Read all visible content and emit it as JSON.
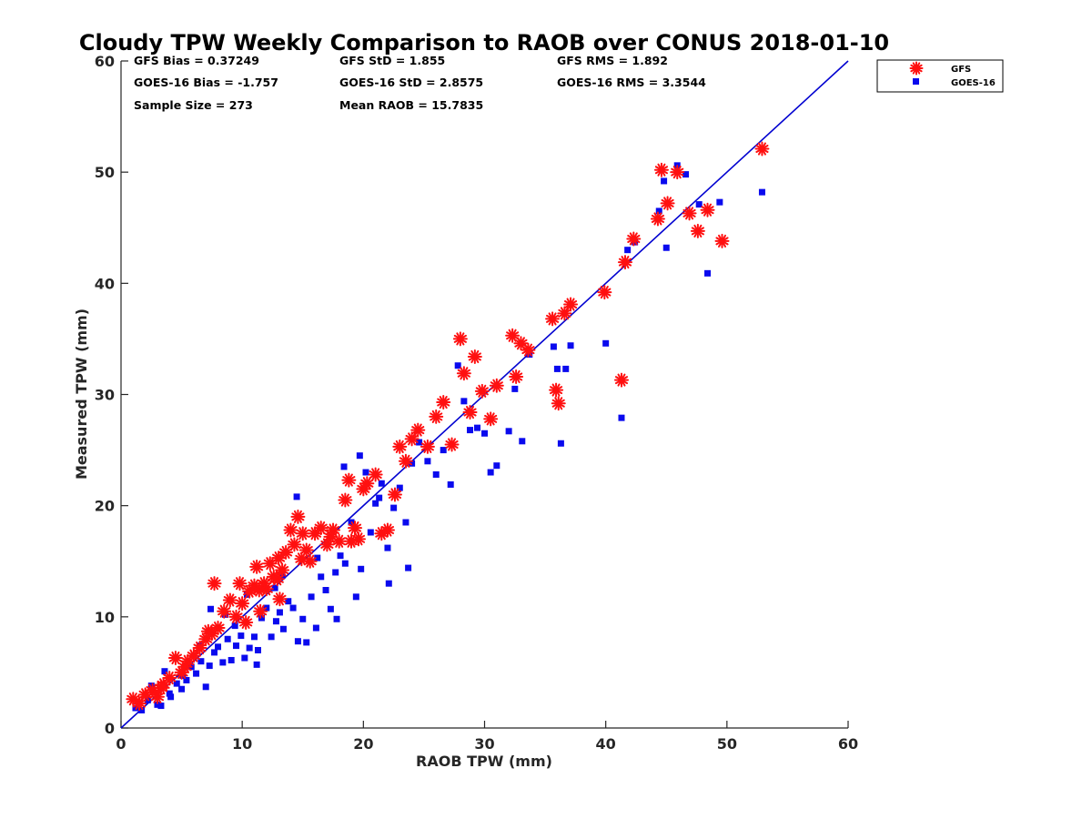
{
  "chart_data": {
    "type": "scatter",
    "title": "Cloudy TPW Weekly Comparison to RAOB over CONUS 2018-01-10",
    "xlabel": "RAOB TPW (mm)",
    "ylabel": "Measured TPW (mm)",
    "xlim": [
      0,
      60
    ],
    "ylim": [
      0,
      60
    ],
    "xticks": [
      "0",
      "10",
      "20",
      "30",
      "40",
      "50",
      "60"
    ],
    "yticks": [
      "0",
      "10",
      "20",
      "30",
      "40",
      "50",
      "60"
    ],
    "reference_line": {
      "from": [
        0,
        0
      ],
      "to": [
        60,
        60
      ],
      "color": "#0000d0"
    },
    "legend_position": "upper-right-outside",
    "stats": {
      "gfs_bias": "GFS Bias = 0.37249",
      "gfs_std": "GFS StD = 1.855",
      "gfs_rms": "GFS RMS = 1.892",
      "goes_bias": "GOES-16 Bias = -1.757",
      "goes_std": "GOES-16 StD = 2.8575",
      "goes_rms": "GOES-16 RMS = 3.3544",
      "sample_size": "Sample Size = 273",
      "mean_raob": "Mean RAOB = 15.7835"
    },
    "series": [
      {
        "name": "GFS",
        "marker": "asterisk",
        "color": "#ff1010",
        "points": [
          [
            1.0,
            2.6
          ],
          [
            1.5,
            2.2
          ],
          [
            2.0,
            3.0
          ],
          [
            2.6,
            3.4
          ],
          [
            3.0,
            2.8
          ],
          [
            3.5,
            3.9
          ],
          [
            4.0,
            4.5
          ],
          [
            4.5,
            6.3
          ],
          [
            5.0,
            5.0
          ],
          [
            5.5,
            6.0
          ],
          [
            6.0,
            6.5
          ],
          [
            6.5,
            7.2
          ],
          [
            7.0,
            8.0
          ],
          [
            7.5,
            8.5
          ],
          [
            7.7,
            13.0
          ],
          [
            8.0,
            9.0
          ],
          [
            8.5,
            10.5
          ],
          [
            9.0,
            11.5
          ],
          [
            9.5,
            10.0
          ],
          [
            9.8,
            13.0
          ],
          [
            10.0,
            11.2
          ],
          [
            10.3,
            9.5
          ],
          [
            10.6,
            12.3
          ],
          [
            11.0,
            12.8
          ],
          [
            11.2,
            14.5
          ],
          [
            11.5,
            10.5
          ],
          [
            11.8,
            13.0
          ],
          [
            12.0,
            12.5
          ],
          [
            12.3,
            14.8
          ],
          [
            12.6,
            13.6
          ],
          [
            13.0,
            15.3
          ],
          [
            13.3,
            14.2
          ],
          [
            13.6,
            15.8
          ],
          [
            14.0,
            17.8
          ],
          [
            14.3,
            16.5
          ],
          [
            14.6,
            19.0
          ],
          [
            15.0,
            17.5
          ],
          [
            15.3,
            16.0
          ],
          [
            15.6,
            15.0
          ],
          [
            16.0,
            17.5
          ],
          [
            16.5,
            18.0
          ],
          [
            17.0,
            16.5
          ],
          [
            17.5,
            17.8
          ],
          [
            18.0,
            16.8
          ],
          [
            18.5,
            20.5
          ],
          [
            18.8,
            22.3
          ],
          [
            19.3,
            18.0
          ],
          [
            19.6,
            17.0
          ],
          [
            20.0,
            21.5
          ],
          [
            20.3,
            22.0
          ],
          [
            21.0,
            22.8
          ],
          [
            21.5,
            17.5
          ],
          [
            22.0,
            17.8
          ],
          [
            22.6,
            21.0
          ],
          [
            23.0,
            25.3
          ],
          [
            23.5,
            24.0
          ],
          [
            24.0,
            26.0
          ],
          [
            24.5,
            26.8
          ],
          [
            25.3,
            25.3
          ],
          [
            26.0,
            28.0
          ],
          [
            26.6,
            29.3
          ],
          [
            27.3,
            25.5
          ],
          [
            28.0,
            35.0
          ],
          [
            28.3,
            31.9
          ],
          [
            28.8,
            28.4
          ],
          [
            29.2,
            33.4
          ],
          [
            29.8,
            30.3
          ],
          [
            30.5,
            27.8
          ],
          [
            31.0,
            30.8
          ],
          [
            32.3,
            35.3
          ],
          [
            32.6,
            31.6
          ],
          [
            33.0,
            34.6
          ],
          [
            33.6,
            34.0
          ],
          [
            35.6,
            36.8
          ],
          [
            35.9,
            30.4
          ],
          [
            36.1,
            29.2
          ],
          [
            36.6,
            37.3
          ],
          [
            37.1,
            38.1
          ],
          [
            39.9,
            39.2
          ],
          [
            41.3,
            31.3
          ],
          [
            41.6,
            41.9
          ],
          [
            42.3,
            44.0
          ],
          [
            44.3,
            45.8
          ],
          [
            44.6,
            50.2
          ],
          [
            45.1,
            47.2
          ],
          [
            45.9,
            50.0
          ],
          [
            46.9,
            46.3
          ],
          [
            47.6,
            44.7
          ],
          [
            48.4,
            46.6
          ],
          [
            49.6,
            43.8
          ],
          [
            52.9,
            52.1
          ],
          [
            5.3,
            5.5
          ],
          [
            3.3,
            3.6
          ],
          [
            7.2,
            8.7
          ],
          [
            11.4,
            12.4
          ],
          [
            12.9,
            13.4
          ],
          [
            14.9,
            15.2
          ],
          [
            17.3,
            17.2
          ],
          [
            19.0,
            16.8
          ],
          [
            13.1,
            11.6
          ]
        ]
      },
      {
        "name": "GOES-16",
        "marker": "square",
        "color": "#0a0aee",
        "points": [
          [
            1.2,
            1.8
          ],
          [
            1.7,
            1.6
          ],
          [
            2.2,
            2.5
          ],
          [
            2.5,
            3.8
          ],
          [
            3.0,
            2.1
          ],
          [
            3.3,
            2.0
          ],
          [
            3.6,
            5.1
          ],
          [
            4.1,
            2.8
          ],
          [
            4.6,
            4.0
          ],
          [
            5.0,
            3.5
          ],
          [
            5.4,
            4.3
          ],
          [
            5.8,
            5.5
          ],
          [
            6.2,
            4.9
          ],
          [
            6.6,
            6.0
          ],
          [
            7.0,
            3.7
          ],
          [
            7.3,
            5.6
          ],
          [
            7.7,
            6.8
          ],
          [
            8.0,
            7.3
          ],
          [
            8.4,
            5.9
          ],
          [
            8.8,
            8.0
          ],
          [
            9.1,
            6.1
          ],
          [
            9.5,
            7.4
          ],
          [
            9.9,
            8.3
          ],
          [
            10.2,
            6.3
          ],
          [
            10.6,
            7.2
          ],
          [
            11.0,
            8.2
          ],
          [
            11.3,
            7.0
          ],
          [
            11.6,
            9.9
          ],
          [
            12.0,
            10.8
          ],
          [
            12.4,
            8.2
          ],
          [
            12.8,
            9.6
          ],
          [
            13.1,
            10.4
          ],
          [
            13.4,
            8.9
          ],
          [
            13.8,
            11.4
          ],
          [
            14.2,
            10.8
          ],
          [
            14.6,
            7.8
          ],
          [
            15.0,
            9.8
          ],
          [
            15.3,
            7.7
          ],
          [
            15.7,
            11.8
          ],
          [
            16.1,
            9.0
          ],
          [
            16.5,
            13.6
          ],
          [
            16.9,
            12.4
          ],
          [
            17.3,
            10.7
          ],
          [
            17.7,
            14.0
          ],
          [
            18.1,
            15.5
          ],
          [
            18.5,
            14.8
          ],
          [
            19.0,
            18.5
          ],
          [
            19.4,
            11.8
          ],
          [
            19.8,
            14.3
          ],
          [
            20.2,
            23.0
          ],
          [
            20.6,
            17.6
          ],
          [
            21.0,
            20.2
          ],
          [
            21.5,
            22.0
          ],
          [
            22.0,
            16.2
          ],
          [
            22.5,
            19.8
          ],
          [
            23.0,
            21.6
          ],
          [
            23.5,
            18.5
          ],
          [
            24.0,
            23.8
          ],
          [
            24.6,
            25.7
          ],
          [
            25.3,
            24.0
          ],
          [
            26.0,
            22.8
          ],
          [
            26.6,
            25.0
          ],
          [
            27.2,
            21.9
          ],
          [
            27.8,
            32.6
          ],
          [
            28.3,
            29.4
          ],
          [
            28.8,
            26.8
          ],
          [
            29.4,
            27.0
          ],
          [
            30.0,
            26.5
          ],
          [
            30.5,
            23.0
          ],
          [
            31.0,
            23.6
          ],
          [
            32.0,
            26.7
          ],
          [
            32.5,
            30.5
          ],
          [
            33.1,
            25.8
          ],
          [
            33.7,
            33.6
          ],
          [
            35.7,
            34.3
          ],
          [
            36.0,
            32.3
          ],
          [
            36.3,
            25.6
          ],
          [
            36.7,
            32.3
          ],
          [
            37.1,
            34.4
          ],
          [
            40.0,
            34.6
          ],
          [
            41.3,
            27.9
          ],
          [
            41.8,
            43.0
          ],
          [
            42.4,
            43.7
          ],
          [
            44.4,
            46.5
          ],
          [
            44.8,
            49.2
          ],
          [
            45.0,
            43.2
          ],
          [
            45.9,
            50.6
          ],
          [
            46.6,
            49.8
          ],
          [
            47.7,
            47.1
          ],
          [
            48.4,
            40.9
          ],
          [
            49.4,
            47.3
          ],
          [
            52.9,
            48.2
          ],
          [
            6.5,
            7.4
          ],
          [
            8.6,
            10.2
          ],
          [
            11.2,
            5.7
          ],
          [
            12.7,
            12.6
          ],
          [
            14.5,
            20.8
          ],
          [
            18.4,
            23.5
          ],
          [
            22.1,
            13.0
          ],
          [
            23.7,
            14.4
          ],
          [
            19.7,
            24.5
          ],
          [
            10.4,
            12.0
          ],
          [
            13.3,
            13.7
          ],
          [
            9.4,
            9.2
          ],
          [
            7.4,
            10.7
          ],
          [
            5.1,
            4.7
          ],
          [
            16.2,
            15.3
          ],
          [
            4.0,
            3.1
          ],
          [
            21.3,
            20.7
          ],
          [
            17.8,
            9.8
          ]
        ]
      }
    ]
  }
}
